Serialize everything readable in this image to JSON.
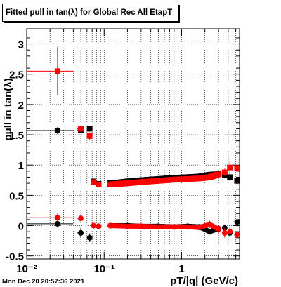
{
  "chart_data": {
    "type": "scatter",
    "title": "Fitted pull in tan(λ) for Global Rec All EtapT",
    "xlabel": "pT/|q| (GeV/c)",
    "ylabel": "pull in tan(λ)",
    "xscale": "log",
    "xlim": [
      0.01,
      5.6
    ],
    "ylim": [
      -0.55,
      3.25
    ],
    "grid": true,
    "x_tick_labels": [
      "10⁻²",
      "10⁻¹",
      "1"
    ],
    "y_tick_labels": [
      "-0.5",
      "0",
      "0.5",
      "1",
      "1.5",
      "2",
      "2.5",
      "3"
    ],
    "x_ticks_major": [
      0.01,
      0.1,
      1
    ],
    "y_ticks_major": [
      -0.5,
      0,
      0.5,
      1,
      1.5,
      2,
      2.5,
      3
    ],
    "series": [
      {
        "color": "#000000",
        "marker": "square",
        "points": [
          [
            0.025,
            1.57,
            0.015,
            0.06
          ],
          [
            0.05,
            1.58,
            0.005,
            0.04
          ],
          [
            0.065,
            1.6,
            0.004,
            0.03
          ],
          [
            0.073,
            0.73,
            0.004,
            0.04
          ],
          [
            0.085,
            0.69,
            0.004,
            0.03
          ],
          [
            0.12,
            0.7,
            0.005,
            0.02
          ],
          [
            0.15,
            0.71,
            0.005,
            0.02
          ],
          [
            0.2,
            0.73,
            0.006,
            0.02
          ],
          [
            0.3,
            0.75,
            0.008,
            0.02
          ],
          [
            0.5,
            0.77,
            0.01,
            0.02
          ],
          [
            0.8,
            0.79,
            0.02,
            0.02
          ],
          [
            1.2,
            0.8,
            0.03,
            0.02
          ],
          [
            1.7,
            0.81,
            0.04,
            0.02
          ],
          [
            2.3,
            0.84,
            0.05,
            0.03
          ],
          [
            3.0,
            0.85,
            0.06,
            0.04
          ],
          [
            3.6,
            0.83,
            0.07,
            0.05
          ],
          [
            4.2,
            0.8,
            0.08,
            0.06
          ],
          [
            5.2,
            0.74,
            0.1,
            0.08
          ]
        ]
      },
      {
        "color": "#ff0000",
        "marker": "square",
        "points": [
          [
            0.025,
            2.55,
            0.015,
            0.4
          ],
          [
            0.05,
            1.6,
            0.005,
            0.05
          ],
          [
            0.065,
            1.48,
            0.004,
            0.06
          ],
          [
            0.073,
            0.72,
            0.004,
            0.04
          ],
          [
            0.085,
            0.68,
            0.004,
            0.03
          ],
          [
            0.12,
            0.68,
            0.005,
            0.02
          ],
          [
            0.15,
            0.69,
            0.005,
            0.02
          ],
          [
            0.2,
            0.7,
            0.006,
            0.02
          ],
          [
            0.3,
            0.72,
            0.008,
            0.02
          ],
          [
            0.5,
            0.74,
            0.01,
            0.02
          ],
          [
            0.8,
            0.76,
            0.02,
            0.02
          ],
          [
            1.2,
            0.77,
            0.03,
            0.02
          ],
          [
            1.7,
            0.78,
            0.04,
            0.02
          ],
          [
            2.3,
            0.8,
            0.05,
            0.04
          ],
          [
            3.0,
            0.85,
            0.06,
            0.05
          ],
          [
            3.6,
            0.88,
            0.07,
            0.06
          ],
          [
            4.2,
            0.96,
            0.08,
            0.1
          ],
          [
            5.2,
            0.95,
            0.1,
            0.2
          ]
        ]
      },
      {
        "color": "#000000",
        "marker": "circle",
        "points": [
          [
            0.025,
            0.03,
            0.015,
            0.06
          ],
          [
            0.05,
            -0.12,
            0.005,
            0.08
          ],
          [
            0.065,
            -0.2,
            0.004,
            0.07
          ],
          [
            0.085,
            -0.01,
            0.004,
            0.03
          ],
          [
            0.12,
            0.0,
            0.005,
            0.02
          ],
          [
            0.2,
            0.0,
            0.006,
            0.02
          ],
          [
            0.3,
            -0.01,
            0.008,
            0.02
          ],
          [
            0.5,
            -0.01,
            0.01,
            0.02
          ],
          [
            0.8,
            -0.02,
            0.02,
            0.02
          ],
          [
            1.2,
            -0.01,
            0.03,
            0.03
          ],
          [
            1.7,
            -0.02,
            0.04,
            0.03
          ],
          [
            2.3,
            -0.1,
            0.05,
            0.05
          ],
          [
            3.0,
            -0.05,
            0.06,
            0.06
          ],
          [
            3.6,
            -0.04,
            0.07,
            0.06
          ],
          [
            4.2,
            -0.12,
            0.08,
            0.07
          ],
          [
            5.2,
            0.06,
            0.1,
            0.1
          ]
        ]
      },
      {
        "color": "#ff0000",
        "marker": "circle",
        "points": [
          [
            0.025,
            0.13,
            0.015,
            0.07
          ],
          [
            0.05,
            0.12,
            0.005,
            0.04
          ],
          [
            0.073,
            0.0,
            0.004,
            0.03
          ],
          [
            0.085,
            -0.01,
            0.004,
            0.03
          ],
          [
            0.12,
            0.0,
            0.005,
            0.02
          ],
          [
            0.2,
            -0.01,
            0.006,
            0.02
          ],
          [
            0.3,
            -0.01,
            0.008,
            0.02
          ],
          [
            0.5,
            -0.02,
            0.01,
            0.02
          ],
          [
            0.8,
            -0.02,
            0.02,
            0.02
          ],
          [
            1.2,
            -0.02,
            0.03,
            0.03
          ],
          [
            1.7,
            -0.03,
            0.04,
            0.03
          ],
          [
            2.3,
            0.02,
            0.05,
            0.06
          ],
          [
            3.0,
            -0.06,
            0.06,
            0.07
          ],
          [
            3.6,
            -0.12,
            0.07,
            0.08
          ],
          [
            4.2,
            -0.1,
            0.08,
            0.08
          ],
          [
            5.2,
            -0.15,
            0.1,
            0.1
          ]
        ]
      }
    ]
  },
  "footer": {
    "timestamp": "Mon Dec 20 20:57:36 2021"
  }
}
